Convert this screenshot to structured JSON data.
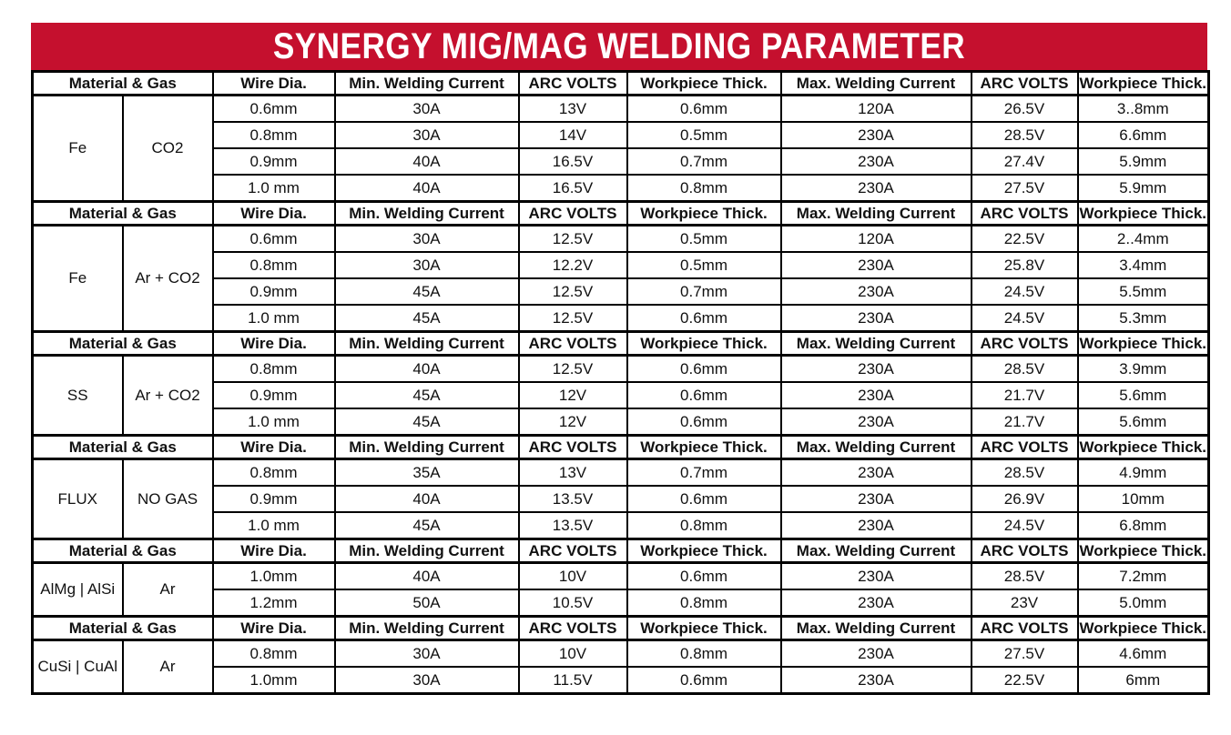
{
  "title": "SYNERGY MIG/MAG WELDING PARAMETER",
  "colors": {
    "banner_red": "#C5102E",
    "border_black": "#000000",
    "banner_text": "#FFFFFF",
    "cell_text": "#111111"
  },
  "header": {
    "labels": [
      "Material & Gas",
      "Wire Dia.",
      "Min. Welding Current",
      "ARC VOLTS",
      "Workpiece Thick.",
      "Max. Welding Current",
      "ARC VOLTS",
      "Workpiece Thick."
    ]
  },
  "sections": [
    {
      "material": "Fe",
      "gas": "CO2",
      "rows": [
        [
          "0.6mm",
          "30A",
          "13V",
          "0.6mm",
          "120A",
          "26.5V",
          "3..8mm"
        ],
        [
          "0.8mm",
          "30A",
          "14V",
          "0.5mm",
          "230A",
          "28.5V",
          "6.6mm"
        ],
        [
          "0.9mm",
          "40A",
          "16.5V",
          "0.7mm",
          "230A",
          "27.4V",
          "5.9mm"
        ],
        [
          "1.0 mm",
          "40A",
          "16.5V",
          "0.8mm",
          "230A",
          "27.5V",
          "5.9mm"
        ]
      ]
    },
    {
      "material": "Fe",
      "gas": "Ar + CO2",
      "rows": [
        [
          "0.6mm",
          "30A",
          "12.5V",
          "0.5mm",
          "120A",
          "22.5V",
          "2..4mm"
        ],
        [
          "0.8mm",
          "30A",
          "12.2V",
          "0.5mm",
          "230A",
          "25.8V",
          "3.4mm"
        ],
        [
          "0.9mm",
          "45A",
          "12.5V",
          "0.7mm",
          "230A",
          "24.5V",
          "5.5mm"
        ],
        [
          "1.0 mm",
          "45A",
          "12.5V",
          "0.6mm",
          "230A",
          "24.5V",
          "5.3mm"
        ]
      ]
    },
    {
      "material": "SS",
      "gas": "Ar + CO2",
      "rows": [
        [
          "0.8mm",
          "40A",
          "12.5V",
          "0.6mm",
          "230A",
          "28.5V",
          "3.9mm"
        ],
        [
          "0.9mm",
          "45A",
          "12V",
          "0.6mm",
          "230A",
          "21.7V",
          "5.6mm"
        ],
        [
          "1.0 mm",
          "45A",
          "12V",
          "0.6mm",
          "230A",
          "21.7V",
          "5.6mm"
        ]
      ]
    },
    {
      "material": "FLUX",
      "gas": "NO GAS",
      "rows": [
        [
          "0.8mm",
          "35A",
          "13V",
          "0.7mm",
          "230A",
          "28.5V",
          "4.9mm"
        ],
        [
          "0.9mm",
          "40A",
          "13.5V",
          "0.6mm",
          "230A",
          "26.9V",
          "10mm"
        ],
        [
          "1.0 mm",
          "45A",
          "13.5V",
          "0.8mm",
          "230A",
          "24.5V",
          "6.8mm"
        ]
      ]
    },
    {
      "material": "AlMg | AlSi",
      "gas": "Ar",
      "rows": [
        [
          "1.0mm",
          "40A",
          "10V",
          "0.6mm",
          "230A",
          "28.5V",
          "7.2mm"
        ],
        [
          "1.2mm",
          "50A",
          "10.5V",
          "0.8mm",
          "230A",
          "23V",
          "5.0mm"
        ]
      ]
    },
    {
      "material": "CuSi | CuAl",
      "gas": "Ar",
      "rows": [
        [
          "0.8mm",
          "30A",
          "10V",
          "0.8mm",
          "230A",
          "27.5V",
          "4.6mm"
        ],
        [
          "1.0mm",
          "30A",
          "11.5V",
          "0.6mm",
          "230A",
          "22.5V",
          "6mm"
        ]
      ]
    }
  ]
}
